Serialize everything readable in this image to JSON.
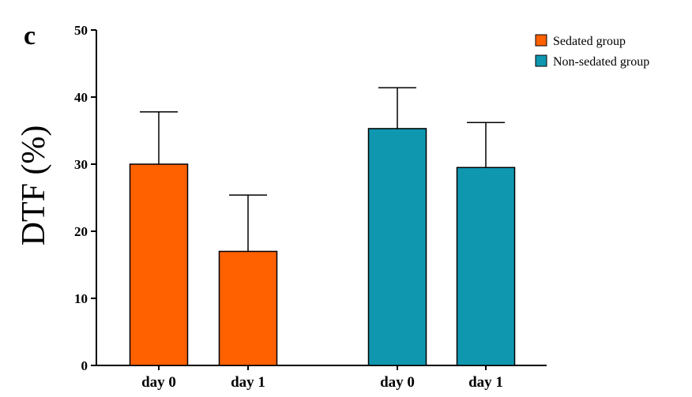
{
  "panel_label": "c",
  "chart_data": {
    "type": "bar",
    "ylabel": "DTF (%)",
    "xlabel": "",
    "ylim": [
      0,
      50
    ],
    "yticks": [
      0,
      10,
      20,
      30,
      40,
      50
    ],
    "grid": false,
    "legend_position": "top-right",
    "error_bars": "upper only",
    "groups": [
      {
        "series": "Sedated group",
        "color": "#FF6000",
        "bars": [
          {
            "category": "day 0",
            "value": 30,
            "error": 7.8
          },
          {
            "category": "day 1",
            "value": 17,
            "error": 8.4
          }
        ]
      },
      {
        "series": "Non-sedated group",
        "color": "#1097B0",
        "bars": [
          {
            "category": "day 0",
            "value": 35.3,
            "error": 6.1
          },
          {
            "category": "day 1",
            "value": 29.5,
            "error": 6.7
          }
        ]
      }
    ],
    "legend": [
      {
        "label": "Sedated group",
        "color": "#FF6000"
      },
      {
        "label": "Non-sedated group",
        "color": "#1097B0"
      }
    ]
  }
}
